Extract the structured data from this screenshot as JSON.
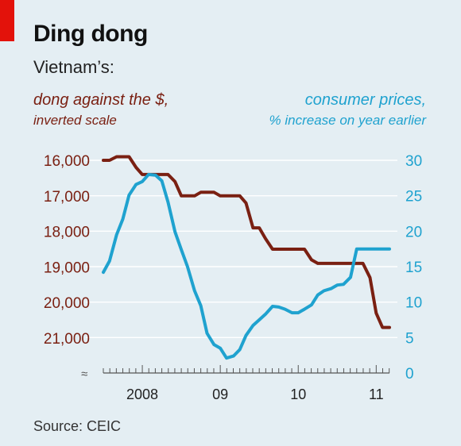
{
  "title": "Ding dong",
  "subtitle": "Vietnam’s:",
  "left_label": {
    "line1": "dong against the $,",
    "line2": "inverted scale"
  },
  "right_label": {
    "line1": "consumer prices,",
    "line2": "% increase on year earlier"
  },
  "source": "Source: CEIC",
  "colors": {
    "dong": "#7a2012",
    "cpi": "#1fa2cf",
    "left_ticks": "#7a2012",
    "right_ticks": "#1fa2cf",
    "background": "#e4eef3",
    "brand": "#e3120b"
  },
  "chart_data": {
    "type": "line",
    "x_range": [
      2007.5,
      2011.17
    ],
    "x_ticks": [
      {
        "x": 2008.0,
        "label": "2008"
      },
      {
        "x": 2009.0,
        "label": "09"
      },
      {
        "x": 2010.0,
        "label": "10"
      },
      {
        "x": 2011.0,
        "label": "11"
      }
    ],
    "left_axis": {
      "inverted": true,
      "ylim": [
        16000,
        21000
      ],
      "ticks": [
        "16,000",
        "17,000",
        "18,000",
        "19,000",
        "20,000",
        "21,000"
      ],
      "tick_values": [
        16000,
        17000,
        18000,
        19000,
        20000,
        21000
      ]
    },
    "right_axis": {
      "ylim": [
        0,
        30
      ],
      "ticks": [
        "0",
        "5",
        "10",
        "15",
        "20",
        "25",
        "30"
      ],
      "tick_values": [
        0,
        5,
        10,
        15,
        20,
        25,
        30
      ]
    },
    "series": [
      {
        "name": "dong against the $",
        "axis": "left",
        "x": [
          2007.5,
          2007.58,
          2007.67,
          2007.75,
          2007.83,
          2007.92,
          2008.0,
          2008.08,
          2008.17,
          2008.25,
          2008.33,
          2008.42,
          2008.5,
          2008.58,
          2008.67,
          2008.75,
          2008.83,
          2008.92,
          2009.0,
          2009.08,
          2009.17,
          2009.25,
          2009.33,
          2009.42,
          2009.5,
          2009.58,
          2009.67,
          2009.75,
          2009.83,
          2009.92,
          2010.0,
          2010.08,
          2010.17,
          2010.25,
          2010.33,
          2010.42,
          2010.5,
          2010.58,
          2010.67,
          2010.75,
          2010.83,
          2010.92,
          2011.0,
          2011.08,
          2011.17
        ],
        "values": [
          16000,
          16000,
          15900,
          15900,
          15900,
          16200,
          16400,
          16400,
          16400,
          16400,
          16400,
          16600,
          17000,
          17000,
          17000,
          16900,
          16900,
          16900,
          17000,
          17000,
          17000,
          17000,
          17200,
          17900,
          17900,
          18200,
          18500,
          18500,
          18500,
          18500,
          18500,
          18500,
          18800,
          18900,
          18900,
          18900,
          18900,
          18900,
          18900,
          18900,
          18900,
          19300,
          20300,
          20700,
          20700
        ]
      },
      {
        "name": "consumer prices, % increase on year earlier",
        "axis": "right",
        "x": [
          2007.5,
          2007.58,
          2007.67,
          2007.75,
          2007.83,
          2007.92,
          2008.0,
          2008.08,
          2008.17,
          2008.25,
          2008.33,
          2008.42,
          2008.5,
          2008.58,
          2008.67,
          2008.75,
          2008.83,
          2008.92,
          2009.0,
          2009.08,
          2009.17,
          2009.25,
          2009.33,
          2009.42,
          2009.5,
          2009.58,
          2009.67,
          2009.75,
          2009.83,
          2009.92,
          2010.0,
          2010.08,
          2010.17,
          2010.25,
          2010.33,
          2010.42,
          2010.5,
          2010.58,
          2010.67,
          2010.75,
          2010.83,
          2010.92,
          2011.0,
          2011.08,
          2011.17
        ],
        "values": [
          14.2,
          15.8,
          19.5,
          21.7,
          25.1,
          26.6,
          27.0,
          28.0,
          27.9,
          27.1,
          24.1,
          19.9,
          17.4,
          15.0,
          11.6,
          9.5,
          5.6,
          4.0,
          3.5,
          2.1,
          2.4,
          3.3,
          5.3,
          6.7,
          7.5,
          8.3,
          9.4,
          9.3,
          9.0,
          8.5,
          8.5,
          9.0,
          9.6,
          11.0,
          11.6,
          11.9,
          12.4,
          12.5,
          13.5,
          17.5,
          17.5,
          17.5,
          17.5,
          17.5,
          17.5
        ]
      }
    ]
  }
}
